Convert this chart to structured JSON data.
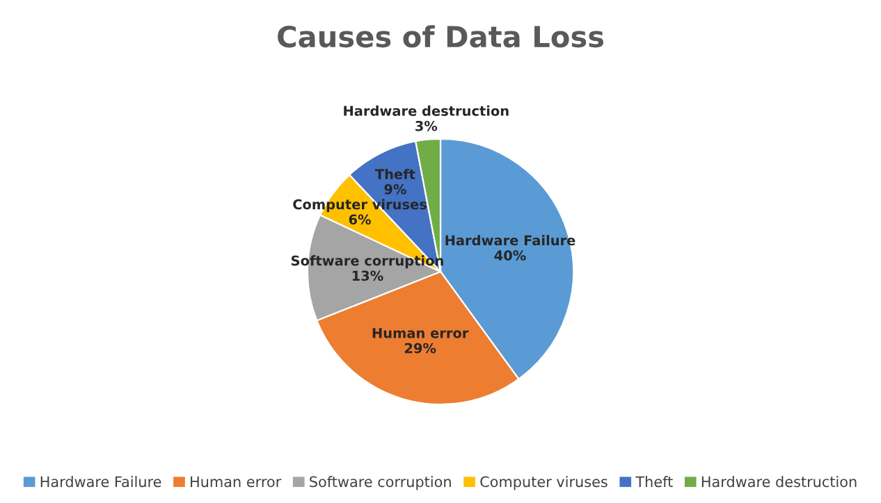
{
  "chart_data": {
    "type": "pie",
    "title": "Causes of Data Loss",
    "categories": [
      "Hardware Failure",
      "Human error",
      "Software corruption",
      "Computer viruses",
      "Theft",
      "Hardware destruction"
    ],
    "values": [
      40,
      29,
      13,
      6,
      9,
      3
    ],
    "colors": [
      "#5b9bd5",
      "#ed7d31",
      "#a5a5a5",
      "#ffc000",
      "#4472c4",
      "#70ad47"
    ],
    "value_labels": [
      "40%",
      "29%",
      "13%",
      "6%",
      "9%",
      "3%"
    ],
    "legend": "bottom"
  }
}
